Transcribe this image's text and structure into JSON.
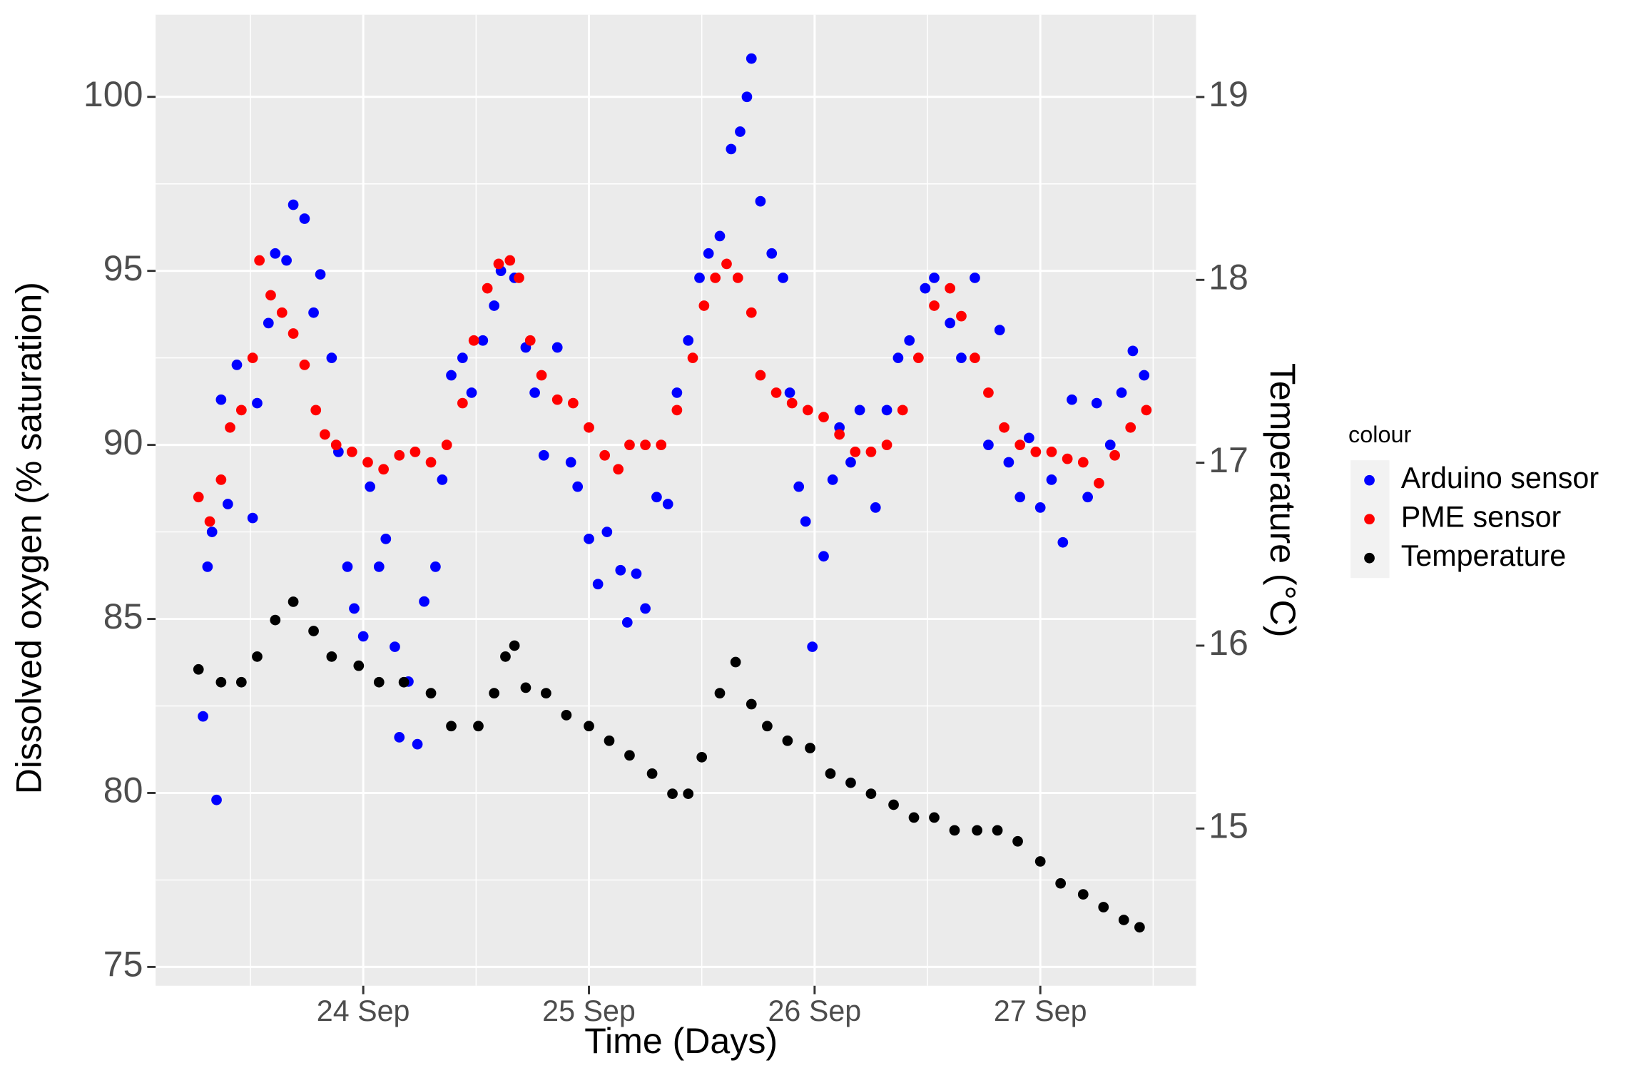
{
  "chart_data": {
    "type": "scatter",
    "xlabel": "Time (Days)",
    "ylabel": "Dissolved oxygen (% saturation)",
    "y2label": "Temperature (°C)",
    "legend_title": "colour",
    "legend": "right",
    "grid": true,
    "xlim": [
      23.08,
      27.69
    ],
    "xticks": [
      {
        "value": 24,
        "label": "24 Sep"
      },
      {
        "value": 25,
        "label": "25 Sep"
      },
      {
        "value": 26,
        "label": "26 Sep"
      },
      {
        "value": 27,
        "label": "27 Sep"
      }
    ],
    "ylim": [
      74.46,
      102.36
    ],
    "yticks": [
      75,
      80,
      85,
      90,
      95,
      100
    ],
    "y2lim": [
      14.14,
      19.45
    ],
    "y2ticks": [
      15,
      16,
      17,
      18,
      19
    ],
    "series": [
      {
        "name": "Arduino sensor",
        "color": "#0000ff",
        "x": [
          23.29,
          23.31,
          23.33,
          23.35,
          23.37,
          23.4,
          23.44,
          23.51,
          23.53,
          23.58,
          23.61,
          23.66,
          23.69,
          23.74,
          23.78,
          23.81,
          23.86,
          23.89,
          23.93,
          23.96,
          24.0,
          24.03,
          24.07,
          24.1,
          24.14,
          24.16,
          24.2,
          24.24,
          24.27,
          24.32,
          24.35,
          24.39,
          24.44,
          24.48,
          24.53,
          24.58,
          24.61,
          24.67,
          24.72,
          24.76,
          24.8,
          24.86,
          24.92,
          24.95,
          25.0,
          25.04,
          25.08,
          25.14,
          25.17,
          25.21,
          25.25,
          25.3,
          25.35,
          25.39,
          25.44,
          25.49,
          25.53,
          25.58,
          25.63,
          25.67,
          25.7,
          25.72,
          25.76,
          25.81,
          25.86,
          25.89,
          25.93,
          25.96,
          25.99,
          26.04,
          26.08,
          26.11,
          26.16,
          26.2,
          26.27,
          26.32,
          26.37,
          26.42,
          26.49,
          26.53,
          26.6,
          26.65,
          26.71,
          26.77,
          26.82,
          26.86,
          26.91,
          26.95,
          27.0,
          27.05,
          27.1,
          27.14,
          27.21,
          27.25,
          27.31,
          27.36,
          27.41,
          27.46
        ],
        "values": [
          82.2,
          86.5,
          87.5,
          79.8,
          91.3,
          88.3,
          92.3,
          87.9,
          91.2,
          93.5,
          95.5,
          95.3,
          96.9,
          96.5,
          93.8,
          94.9,
          92.5,
          89.8,
          86.5,
          85.3,
          84.5,
          88.8,
          86.5,
          87.3,
          84.2,
          81.6,
          83.2,
          81.4,
          85.5,
          86.5,
          89.0,
          92.0,
          92.5,
          91.5,
          93.0,
          94.0,
          95.0,
          94.8,
          92.8,
          91.5,
          89.7,
          92.8,
          89.5,
          88.8,
          87.3,
          86.0,
          87.5,
          86.4,
          84.9,
          86.3,
          85.3,
          88.5,
          88.3,
          91.5,
          93.0,
          94.8,
          95.5,
          96.0,
          98.5,
          99.0,
          100.0,
          101.1,
          97.0,
          95.5,
          94.8,
          91.5,
          88.8,
          87.8,
          84.2,
          86.8,
          89.0,
          90.5,
          89.5,
          91.0,
          88.2,
          91.0,
          92.5,
          93.0,
          94.5,
          94.8,
          93.5,
          92.5,
          94.8,
          90.0,
          93.3,
          89.5,
          88.5,
          90.2,
          88.2,
          89.0,
          87.2,
          91.3,
          88.5,
          91.2,
          90.0,
          91.5,
          92.7,
          92.0
        ]
      },
      {
        "name": "PME sensor",
        "color": "#ff0000",
        "x": [
          23.27,
          23.32,
          23.37,
          23.41,
          23.46,
          23.51,
          23.54,
          23.59,
          23.64,
          23.69,
          23.74,
          23.79,
          23.83,
          23.88,
          23.95,
          24.02,
          24.09,
          24.16,
          24.23,
          24.3,
          24.37,
          24.44,
          24.49,
          24.55,
          24.6,
          24.65,
          24.69,
          24.74,
          24.79,
          24.86,
          24.93,
          25.0,
          25.07,
          25.13,
          25.18,
          25.25,
          25.32,
          25.39,
          25.46,
          25.51,
          25.56,
          25.61,
          25.66,
          25.72,
          25.76,
          25.83,
          25.9,
          25.97,
          26.04,
          26.11,
          26.18,
          26.25,
          26.32,
          26.39,
          26.46,
          26.53,
          26.6,
          26.65,
          26.71,
          26.77,
          26.84,
          26.91,
          26.98,
          27.05,
          27.12,
          27.19,
          27.26,
          27.33,
          27.4,
          27.47
        ],
        "values": [
          88.5,
          87.8,
          89.0,
          90.5,
          91.0,
          92.5,
          95.3,
          94.3,
          93.8,
          93.2,
          92.3,
          91.0,
          90.3,
          90.0,
          89.8,
          89.5,
          89.3,
          89.7,
          89.8,
          89.5,
          90.0,
          91.2,
          93.0,
          94.5,
          95.2,
          95.3,
          94.8,
          93.0,
          92.0,
          91.3,
          91.2,
          90.5,
          89.7,
          89.3,
          90.0,
          90.0,
          90.0,
          91.0,
          92.5,
          94.0,
          94.8,
          95.2,
          94.8,
          93.8,
          92.0,
          91.5,
          91.2,
          91.0,
          90.8,
          90.3,
          89.8,
          89.8,
          90.0,
          91.0,
          92.5,
          94.0,
          94.5,
          93.7,
          92.5,
          91.5,
          90.5,
          90.0,
          89.8,
          89.8,
          89.6,
          89.5,
          88.9,
          89.7,
          90.5,
          91.0
        ]
      },
      {
        "name": "Temperature",
        "color": "#000000",
        "axis": "y2",
        "x": [
          23.27,
          23.37,
          23.46,
          23.53,
          23.61,
          23.69,
          23.78,
          23.86,
          23.98,
          24.07,
          24.18,
          24.3,
          24.39,
          24.51,
          24.58,
          24.63,
          24.67,
          24.72,
          24.81,
          24.9,
          25.0,
          25.09,
          25.18,
          25.28,
          25.37,
          25.44,
          25.5,
          25.58,
          25.65,
          25.72,
          25.79,
          25.88,
          25.98,
          26.07,
          26.16,
          26.25,
          26.35,
          26.44,
          26.53,
          26.62,
          26.72,
          26.81,
          26.9,
          27.0,
          27.09,
          27.19,
          27.28,
          27.37,
          27.44
        ],
        "values": [
          15.87,
          15.8,
          15.8,
          15.94,
          16.14,
          16.24,
          16.08,
          15.94,
          15.89,
          15.8,
          15.8,
          15.74,
          15.56,
          15.56,
          15.74,
          15.94,
          16.0,
          15.77,
          15.74,
          15.62,
          15.56,
          15.48,
          15.4,
          15.3,
          15.19,
          15.19,
          15.39,
          15.74,
          15.91,
          15.68,
          15.56,
          15.48,
          15.44,
          15.3,
          15.25,
          15.19,
          15.13,
          15.06,
          15.06,
          14.99,
          14.99,
          14.99,
          14.93,
          14.82,
          14.7,
          14.64,
          14.57,
          14.5,
          14.46
        ]
      }
    ]
  }
}
